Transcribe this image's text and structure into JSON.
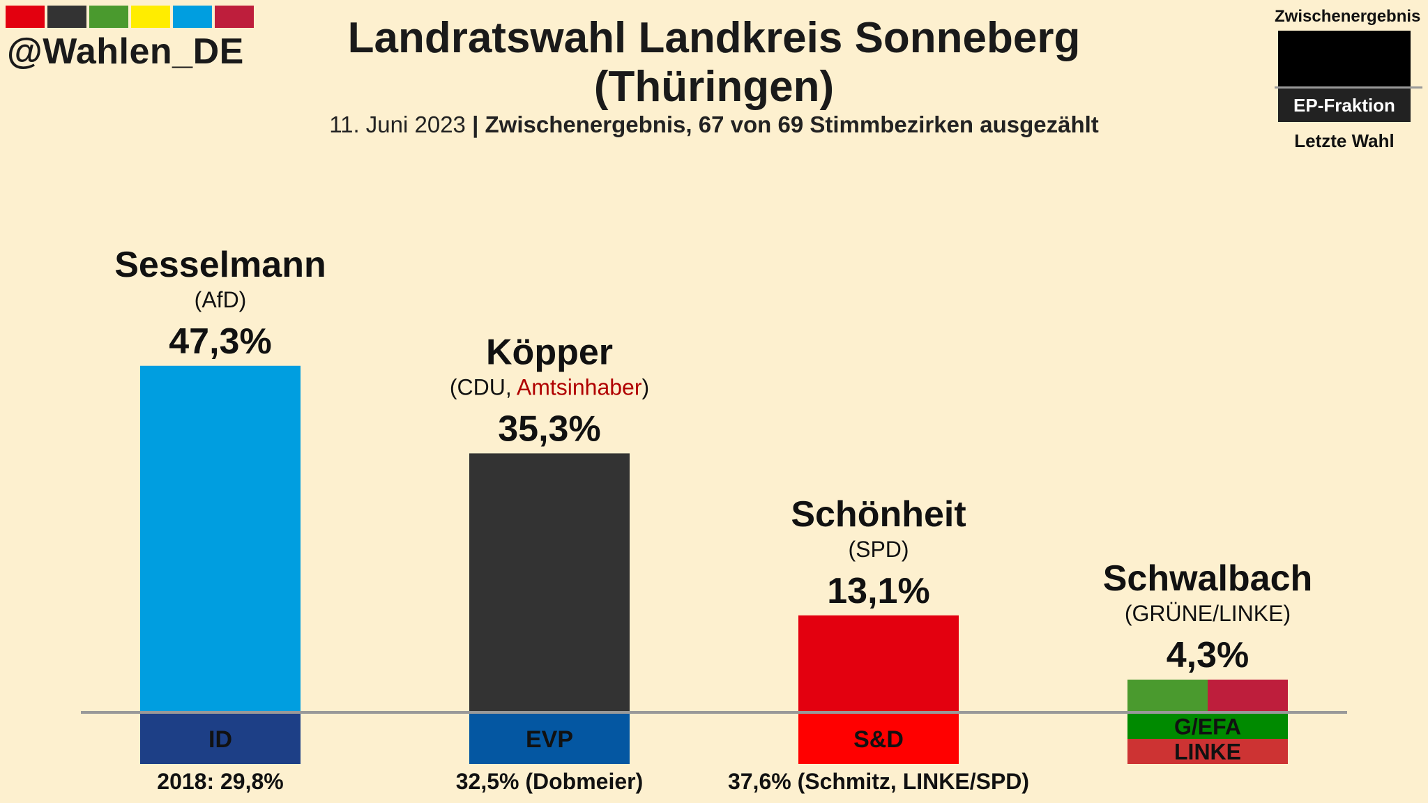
{
  "handle": "@Wahlen_DE",
  "brand_colors": [
    "#e3000f",
    "#333333",
    "#4a9a2e",
    "#ffed00",
    "#009ee0",
    "#be1e3c"
  ],
  "title_line1": "Landratswahl Landkreis Sonneberg",
  "title_line2": "(Thüringen)",
  "subtitle_date": "11. Juni 2023",
  "subtitle_sep": "|",
  "subtitle_status": "Zwischenergebnis, 67 von 69 Stimmbezirken ausgezählt",
  "legend": {
    "top": "Zwischenergebnis",
    "ep": "EP-Fraktion",
    "bottom": "Letzte Wahl"
  },
  "chart_data": {
    "type": "bar",
    "categories": [
      "Sesselmann",
      "Köpper",
      "Schönheit",
      "Schwalbach"
    ],
    "values": [
      47.3,
      35.3,
      13.1,
      4.3
    ],
    "value_labels": [
      "47,3%",
      "35,3%",
      "13,1%",
      "4,3%"
    ],
    "ylim": [
      0,
      50
    ],
    "bars": [
      {
        "name": "Sesselmann",
        "party": "(AfD)",
        "party_parts": [],
        "value": 47.3,
        "value_label": "47,3%",
        "colors": [
          "#009ee0"
        ],
        "ep": [
          "ID"
        ],
        "ep_colors": [
          "#1d3f86"
        ],
        "ep_text_colors": [
          "#111111"
        ],
        "last": "2018: 29,8%"
      },
      {
        "name": "Köpper",
        "party": "",
        "party_parts": [
          {
            "text": "(CDU, ",
            "color": "#111111"
          },
          {
            "text": "Amtsinhaber",
            "color": "#b00000"
          },
          {
            "text": ")",
            "color": "#111111"
          }
        ],
        "value": 35.3,
        "value_label": "35,3%",
        "colors": [
          "#333333"
        ],
        "ep": [
          "EVP"
        ],
        "ep_colors": [
          "#0457a2"
        ],
        "ep_text_colors": [
          "#111111"
        ],
        "last": "32,5% (Dobmeier)"
      },
      {
        "name": "Schönheit",
        "party": "(SPD)",
        "party_parts": [],
        "value": 13.1,
        "value_label": "13,1%",
        "colors": [
          "#e3000f"
        ],
        "ep": [
          "S&D"
        ],
        "ep_colors": [
          "#ff0000"
        ],
        "ep_text_colors": [
          "#111111"
        ],
        "last": "37,6% (Schmitz, LINKE/SPD)"
      },
      {
        "name": "Schwalbach",
        "party": "(GRÜNE/LINKE)",
        "party_parts": [],
        "value": 4.3,
        "value_label": "4,3%",
        "colors": [
          "#4a9a2e",
          "#be1e3c"
        ],
        "ep": [
          "G/EFA",
          "LINKE"
        ],
        "ep_colors": [
          "#008a00",
          "#cd3333"
        ],
        "ep_text_colors": [
          "#111111",
          "#111111"
        ],
        "last": ""
      }
    ]
  }
}
